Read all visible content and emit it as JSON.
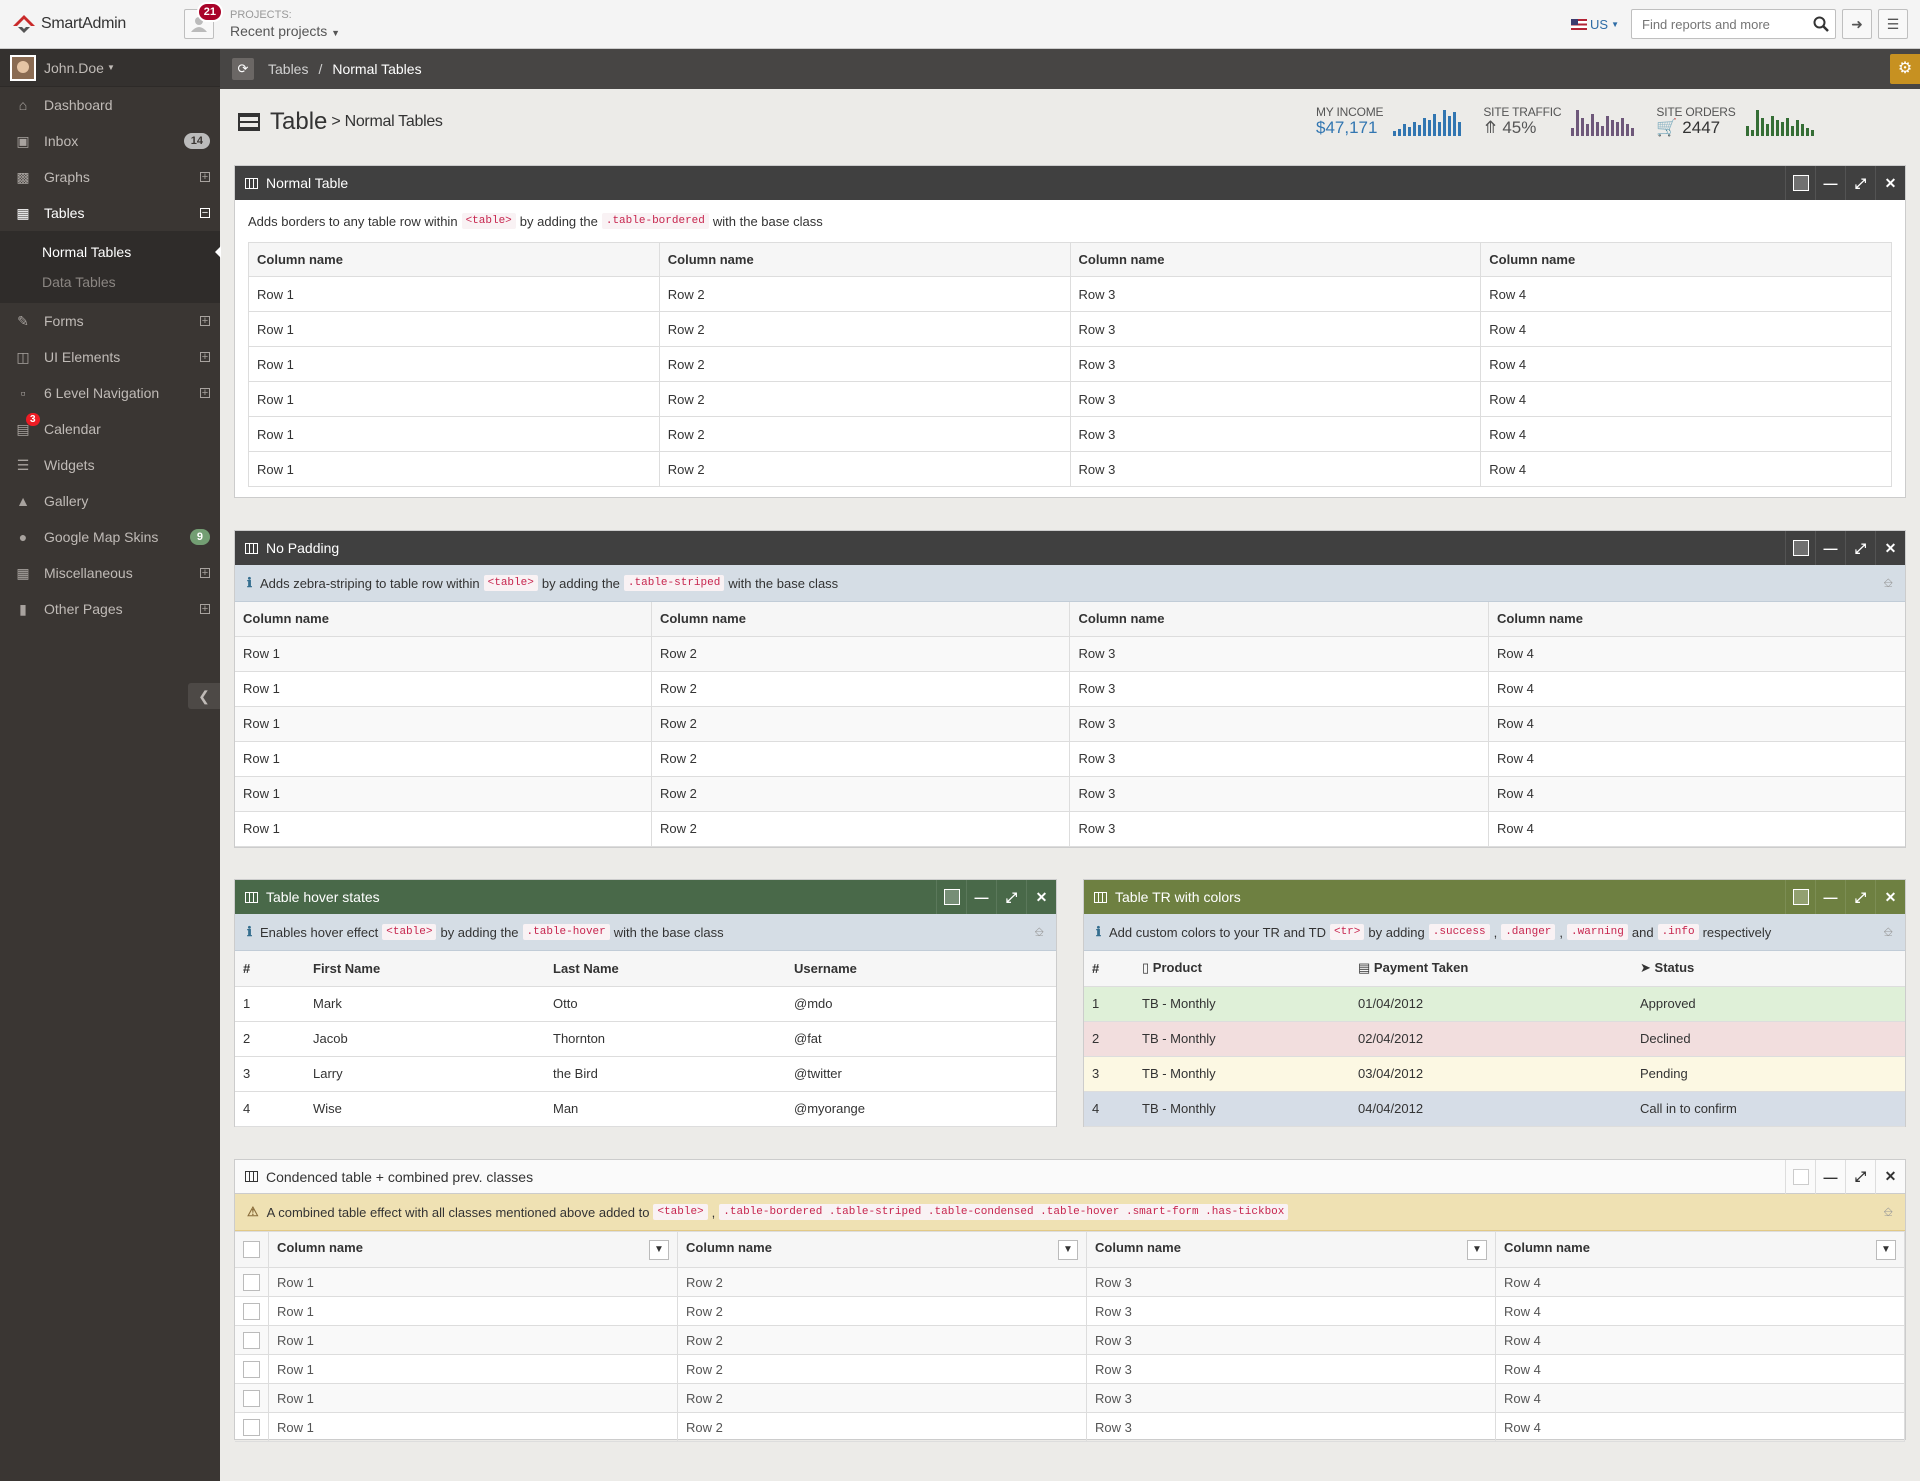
{
  "header": {
    "logo_text": "SmartAdmin",
    "notif_count": "21",
    "projects_label": "PROJECTS:",
    "projects_value": "Recent projects",
    "lang": "US",
    "search_placeholder": "Find reports and more"
  },
  "sidebar": {
    "user": "John.Doe",
    "items": [
      {
        "label": "Dashboard",
        "icon": "home-icon"
      },
      {
        "label": "Inbox",
        "icon": "inbox-icon",
        "count": "14"
      },
      {
        "label": "Graphs",
        "icon": "bar-chart-icon"
      },
      {
        "label": "Tables",
        "icon": "table-icon"
      },
      {
        "label": "Forms",
        "icon": "pencil-square-icon"
      },
      {
        "label": "UI Elements",
        "icon": "desktop-icon"
      },
      {
        "label": "6 Level Navigation",
        "icon": "folder-open-icon"
      },
      {
        "label": "Calendar",
        "icon": "calendar-icon",
        "badge": "3"
      },
      {
        "label": "Widgets",
        "icon": "list-alt-icon"
      },
      {
        "label": "Gallery",
        "icon": "picture-icon"
      },
      {
        "label": "Google Map Skins",
        "icon": "map-marker-icon",
        "count": "9"
      },
      {
        "label": "Miscellaneous",
        "icon": "windows-icon"
      },
      {
        "label": "Other Pages",
        "icon": "file-icon"
      }
    ],
    "sub": [
      "Normal Tables",
      "Data Tables"
    ]
  },
  "ribbon": {
    "crumb1": "Tables",
    "sep": "/",
    "crumb2": "Normal Tables"
  },
  "page": {
    "title": "Table",
    "subtitle": "> Normal Tables"
  },
  "stats": [
    {
      "label": "MY INCOME",
      "value": "$47,171",
      "color": "#3276b1"
    },
    {
      "label": "SITE TRAFFIC",
      "value": "45%",
      "color": "#6e587a"
    },
    {
      "label": "SITE ORDERS",
      "value": "2447",
      "color": "#356e35"
    }
  ],
  "colors": {
    "dark": "#404040",
    "green": "#496949",
    "olive": "#6e8041",
    "accent": "#c79121"
  },
  "w1": {
    "title": "Normal Table",
    "note_a": "Adds borders to any table row within",
    "code_a": "<table>",
    "note_b": "by adding the",
    "code_b": ".table-bordered",
    "note_c": "with the base class",
    "cols": [
      "Column name",
      "Column name",
      "Column name",
      "Column name"
    ],
    "rows": [
      [
        "Row 1",
        "Row 2",
        "Row 3",
        "Row 4"
      ],
      [
        "Row 1",
        "Row 2",
        "Row 3",
        "Row 4"
      ],
      [
        "Row 1",
        "Row 2",
        "Row 3",
        "Row 4"
      ],
      [
        "Row 1",
        "Row 2",
        "Row 3",
        "Row 4"
      ],
      [
        "Row 1",
        "Row 2",
        "Row 3",
        "Row 4"
      ],
      [
        "Row 1",
        "Row 2",
        "Row 3",
        "Row 4"
      ]
    ]
  },
  "w2": {
    "title": "No Padding",
    "note_a": "Adds zebra-striping to table row within",
    "code_a": "<table>",
    "note_b": "by adding the",
    "code_b": ".table-striped",
    "note_c": "with the base class",
    "cols": [
      "Column name",
      "Column name",
      "Column name",
      "Column name"
    ],
    "rows": [
      [
        "Row 1",
        "Row 2",
        "Row 3",
        "Row 4"
      ],
      [
        "Row 1",
        "Row 2",
        "Row 3",
        "Row 4"
      ],
      [
        "Row 1",
        "Row 2",
        "Row 3",
        "Row 4"
      ],
      [
        "Row 1",
        "Row 2",
        "Row 3",
        "Row 4"
      ],
      [
        "Row 1",
        "Row 2",
        "Row 3",
        "Row 4"
      ],
      [
        "Row 1",
        "Row 2",
        "Row 3",
        "Row 4"
      ]
    ]
  },
  "w3": {
    "title": "Table hover states",
    "note_a": "Enables hover effect",
    "code_a": "<table>",
    "note_b": "by adding the",
    "code_b": ".table-hover",
    "note_c": "with the base class",
    "cols": [
      "#",
      "First Name",
      "Last Name",
      "Username"
    ],
    "rows": [
      [
        "1",
        "Mark",
        "Otto",
        "@mdo"
      ],
      [
        "2",
        "Jacob",
        "Thornton",
        "@fat"
      ],
      [
        "3",
        "Larry",
        "the Bird",
        "@twitter"
      ],
      [
        "4",
        "Wise",
        "Man",
        "@myorange"
      ]
    ]
  },
  "w4": {
    "title": "Table TR with colors",
    "note_a": "Add custom colors to your TR and TD",
    "code_a": "<tr>",
    "note_b": "by adding",
    "code_b": ".success",
    "sep1": ",",
    "code_c": ".danger",
    "sep2": ",",
    "code_d": ".warning",
    "and": "and",
    "code_e": ".info",
    "note_c": "respectively",
    "cols": [
      "#",
      "Product",
      "Payment Taken",
      "Status"
    ],
    "rows": [
      [
        "1",
        "TB - Monthly",
        "01/04/2012",
        "Approved"
      ],
      [
        "2",
        "TB - Monthly",
        "02/04/2012",
        "Declined"
      ],
      [
        "3",
        "TB - Monthly",
        "03/04/2012",
        "Pending"
      ],
      [
        "4",
        "TB - Monthly",
        "04/04/2012",
        "Call in to confirm"
      ]
    ]
  },
  "w5": {
    "title": "Condenced table + combined prev. classes",
    "note_a": "A combined table effect with all classes mentioned above added to",
    "code_a": "<table>",
    "sep": ",",
    "code_b": ".table-bordered .table-striped .table-condensed .table-hover .smart-form .has-tickbox",
    "cols": [
      "Column name",
      "Column name",
      "Column name",
      "Column name"
    ],
    "rows": [
      [
        "Row 1",
        "Row 2",
        "Row 3",
        "Row 4"
      ],
      [
        "Row 1",
        "Row 2",
        "Row 3",
        "Row 4"
      ],
      [
        "Row 1",
        "Row 2",
        "Row 3",
        "Row 4"
      ],
      [
        "Row 1",
        "Row 2",
        "Row 3",
        "Row 4"
      ],
      [
        "Row 1",
        "Row 2",
        "Row 3",
        "Row 4"
      ],
      [
        "Row 1",
        "Row 2",
        "Row 3",
        "Row 4"
      ]
    ]
  }
}
